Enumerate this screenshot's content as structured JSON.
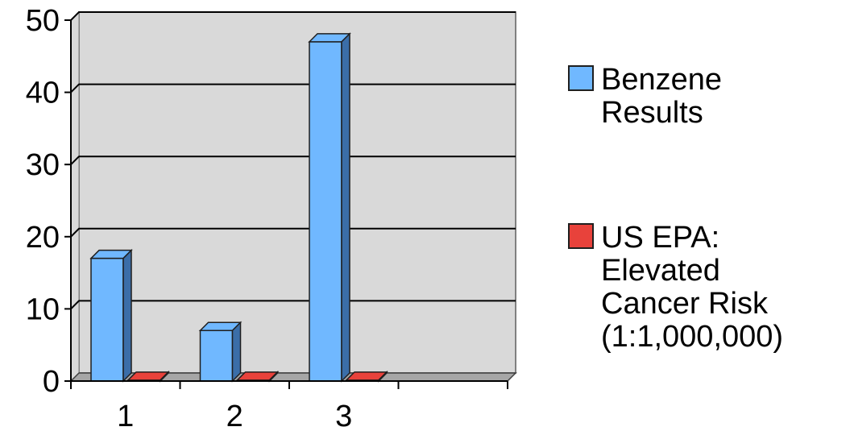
{
  "chart_data": {
    "type": "bar",
    "title": "",
    "xlabel": "",
    "ylabel": "",
    "categories": [
      "1",
      "2",
      "3",
      ""
    ],
    "series": [
      {
        "name": "Benzene Results",
        "values": [
          17,
          7,
          47,
          0
        ],
        "color": "#70b8ff",
        "side_color": "#3b6ea8"
      },
      {
        "name": "US EPA: Elevated Cancer Risk (1:1,000,000)",
        "values": [
          0.13,
          0.13,
          0.13,
          0
        ],
        "color": "#e8423b",
        "side_color": "#9c2520"
      }
    ],
    "yticks": [
      "0",
      "10",
      "20",
      "30",
      "40",
      "50"
    ],
    "ylim": [
      0,
      50
    ],
    "grid": true,
    "legend_position": "right",
    "colors": {
      "plot_back": "#d9d9d9",
      "floor": "#a6a6a6",
      "gridline": "#000000"
    }
  },
  "legend": {
    "items": [
      {
        "lines": [
          "Benzene",
          "Results"
        ]
      },
      {
        "lines": [
          "US EPA:",
          "Elevated",
          "Cancer Risk",
          "(1:1,000,000)"
        ]
      }
    ]
  }
}
